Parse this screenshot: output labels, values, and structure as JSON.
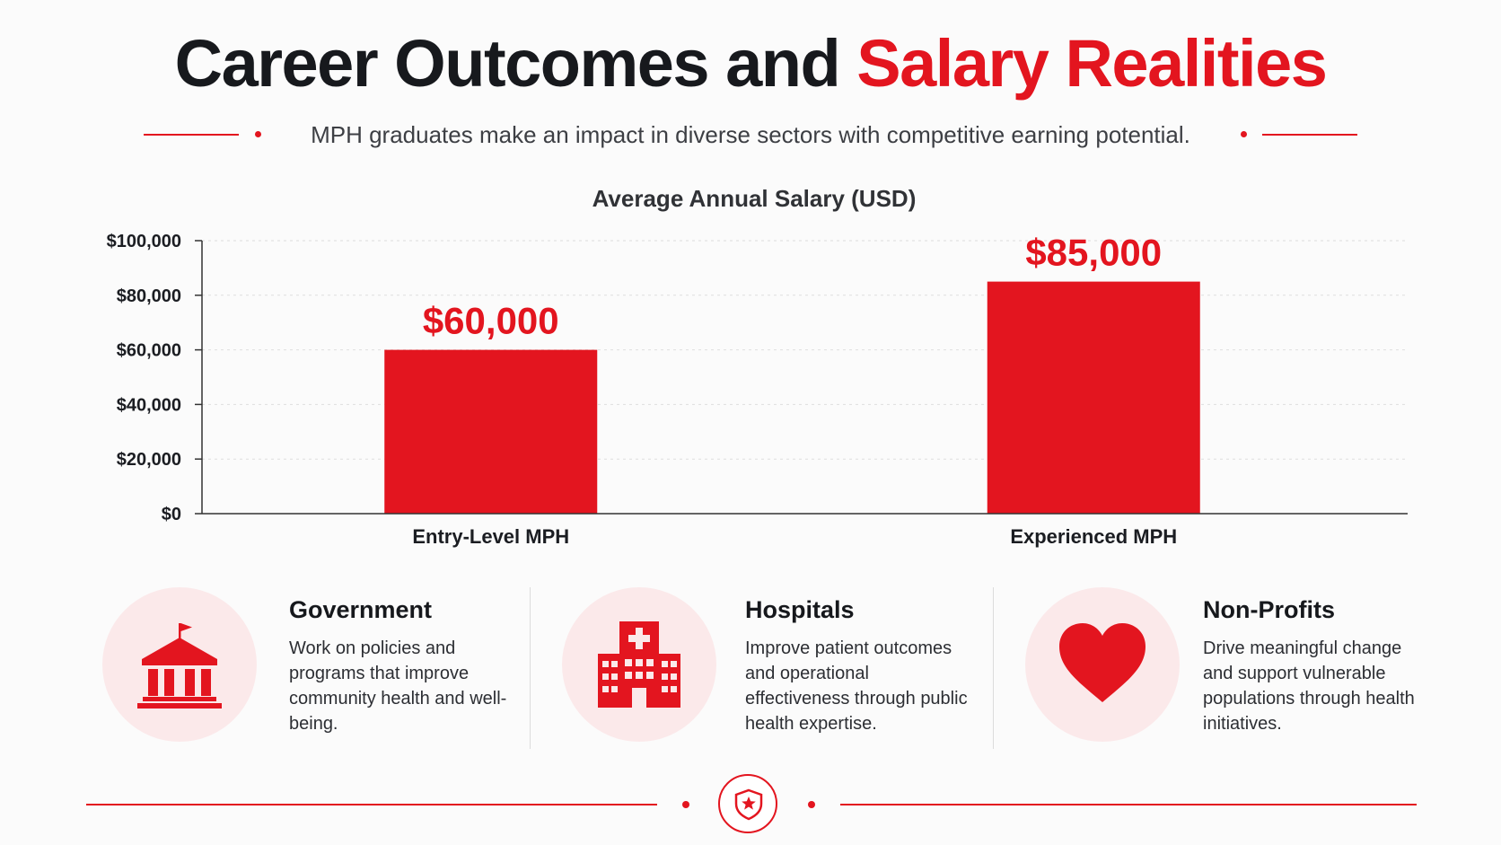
{
  "header": {
    "title_main": "Career Outcomes and",
    "title_accent": "Salary Realities",
    "subtitle": "MPH graduates make an impact in diverse sectors with competitive earning potential."
  },
  "colors": {
    "accent": "#e3151f",
    "icon_circle": "#fbe9ea",
    "text": "#1b1d22"
  },
  "chart_data": {
    "type": "bar",
    "title": "Average Annual Salary (USD)",
    "categories": [
      "Entry-Level MPH",
      "Experienced MPH"
    ],
    "values": [
      60000,
      85000
    ],
    "value_labels": [
      "$60,000",
      "$85,000"
    ],
    "ylim": [
      0,
      100000
    ],
    "yticks": [
      0,
      20000,
      40000,
      60000,
      80000,
      100000
    ],
    "ytick_labels": [
      "$0",
      "$20,000",
      "$40,000",
      "$60,000",
      "$80,000",
      "$100,000"
    ],
    "xlabel": "",
    "ylabel": "",
    "grid": true,
    "bar_color": "#e3151f"
  },
  "sectors": [
    {
      "icon": "government-building-icon",
      "title": "Government",
      "text": "Work on policies and programs that improve community health and well-being."
    },
    {
      "icon": "hospital-icon",
      "title": "Hospitals",
      "text": "Improve patient outcomes and operational effectiveness through public health expertise."
    },
    {
      "icon": "heart-icon",
      "title": "Non-Profits",
      "text": "Drive meaningful change and support vulnerable populations through health initiatives."
    }
  ],
  "footer": {
    "icon": "shield-star-icon"
  }
}
